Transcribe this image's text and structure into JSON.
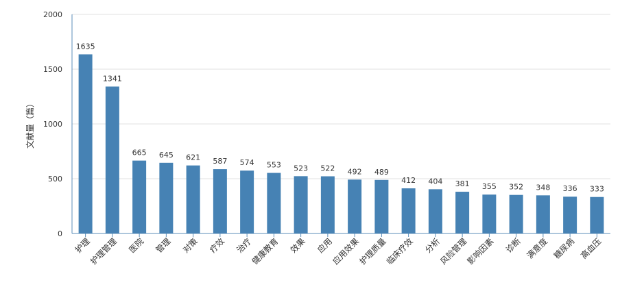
{
  "chart_data": {
    "type": "bar",
    "title": "",
    "xlabel": "",
    "ylabel": "文献量（篇）",
    "ylim": [
      0,
      2000
    ],
    "yticks": [
      0,
      500,
      1000,
      1500,
      2000
    ],
    "grid": true,
    "categories": [
      "护理",
      "护理管理",
      "医院",
      "管理",
      "对策",
      "疗效",
      "治疗",
      "健康教育",
      "效果",
      "应用",
      "应用效果",
      "护理质量",
      "临床疗效",
      "分析",
      "风险管理",
      "影响因素",
      "诊断",
      "满意度",
      "糖尿病",
      "高血压"
    ],
    "values": [
      1635,
      1341,
      665,
      645,
      621,
      587,
      574,
      553,
      523,
      522,
      492,
      489,
      412,
      404,
      381,
      355,
      352,
      348,
      336,
      333
    ],
    "colors": {
      "bar": "#4682b4",
      "grid": "#e0e0e0",
      "axis": "#5b8db8"
    }
  }
}
